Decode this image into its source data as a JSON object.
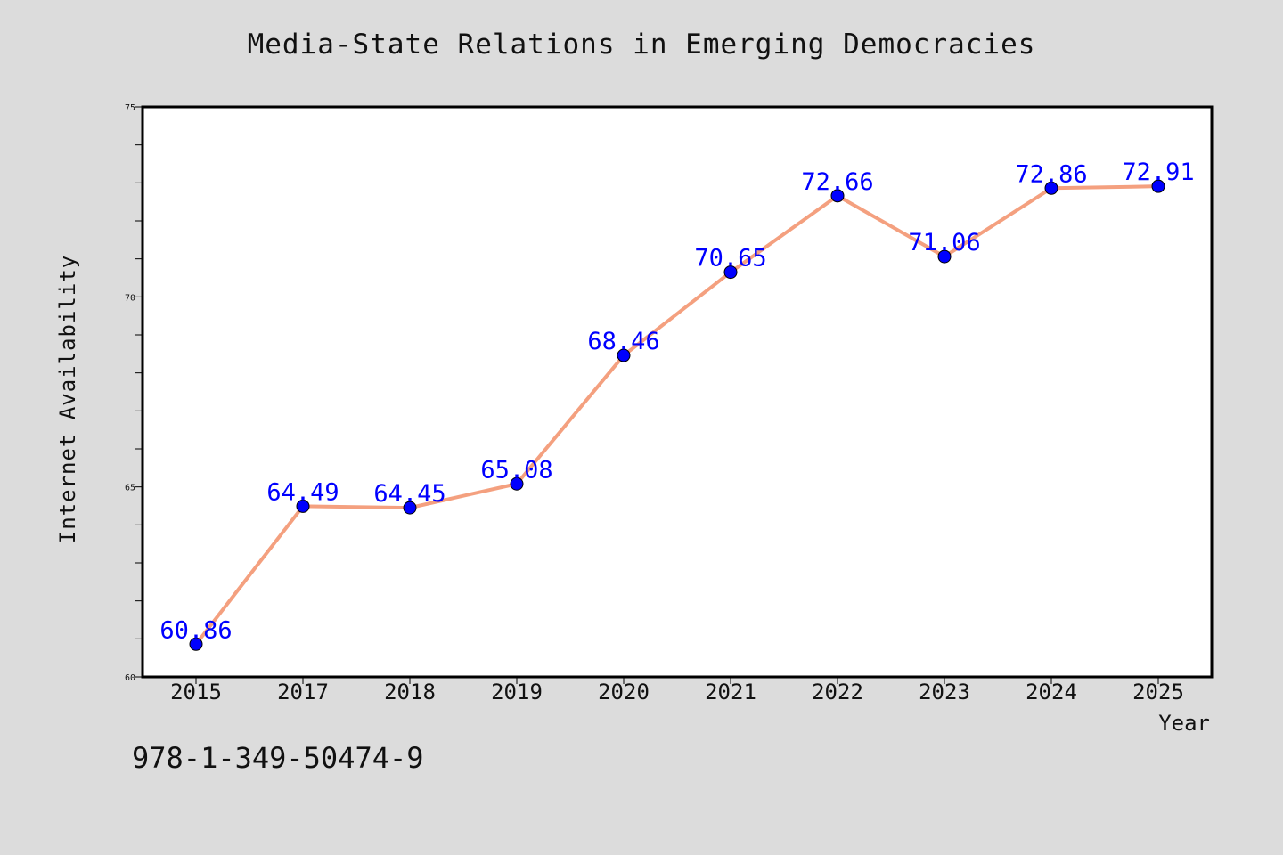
{
  "chart_data": {
    "type": "line",
    "title": "Media-State Relations in Emerging Democracies",
    "xlabel": "Year",
    "ylabel": "Internet Availability",
    "categories": [
      "2015",
      "2017",
      "2018",
      "2019",
      "2020",
      "2021",
      "2022",
      "2023",
      "2024",
      "2025"
    ],
    "series": [
      {
        "values": [
          60.86,
          64.49,
          64.45,
          65.08,
          68.46,
          70.65,
          72.66,
          71.06,
          72.86,
          72.91
        ],
        "line_color": "#f4a07f",
        "marker_color": "#0000ff"
      }
    ],
    "data_labels": [
      "60.86",
      "64.49",
      "64.45",
      "65.08",
      "68.46",
      "70.65",
      "72.66",
      "71.06",
      "72.86",
      "72.91"
    ],
    "ylim": [
      60,
      75
    ],
    "y_ticks": [
      60,
      65,
      70,
      75
    ],
    "y_minor_step": 1,
    "grid": false,
    "label_color": "#0000ff"
  },
  "footer": {
    "code": "978-1-349-50474-9"
  }
}
